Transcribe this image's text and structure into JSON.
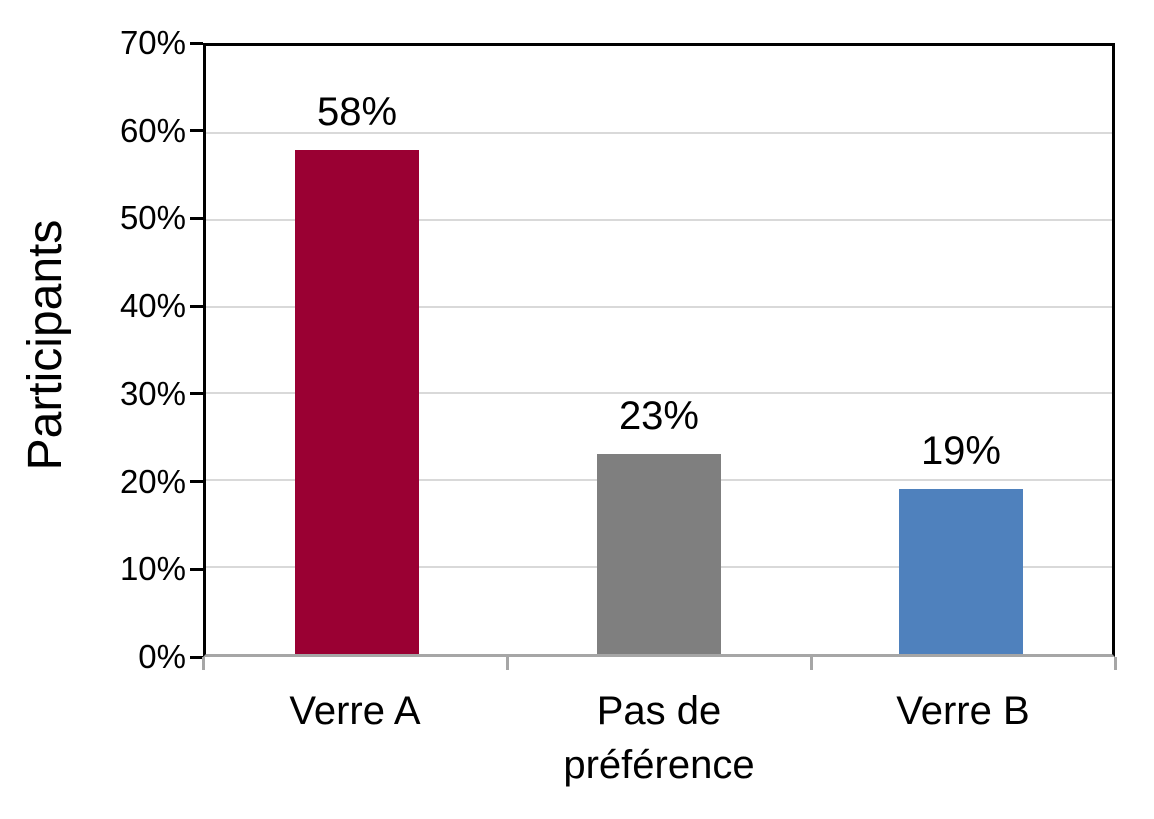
{
  "chart_data": {
    "type": "bar",
    "title": "",
    "categories": [
      "Verre A",
      "Pas de préférence",
      "Verre B"
    ],
    "values": [
      58,
      23,
      19
    ],
    "value_labels": [
      "58%",
      "23%",
      "19%"
    ],
    "bar_colors": [
      "#9A0033",
      "#7F7F7F",
      "#4F81BD"
    ],
    "xlabel": "",
    "ylabel": "Participants",
    "ylim": [
      0,
      70
    ],
    "ytick_step": 10,
    "ytick_labels": [
      "0%",
      "10%",
      "20%",
      "30%",
      "40%",
      "50%",
      "60%",
      "70%"
    ],
    "grid": "horizontal-only",
    "legend": "none"
  },
  "colors": {
    "background": "#FFFFFF",
    "plot_border": "#000000",
    "x_axis_line": "#A6A6A6",
    "gridline": "#D9D9D9",
    "text": "#000000"
  }
}
